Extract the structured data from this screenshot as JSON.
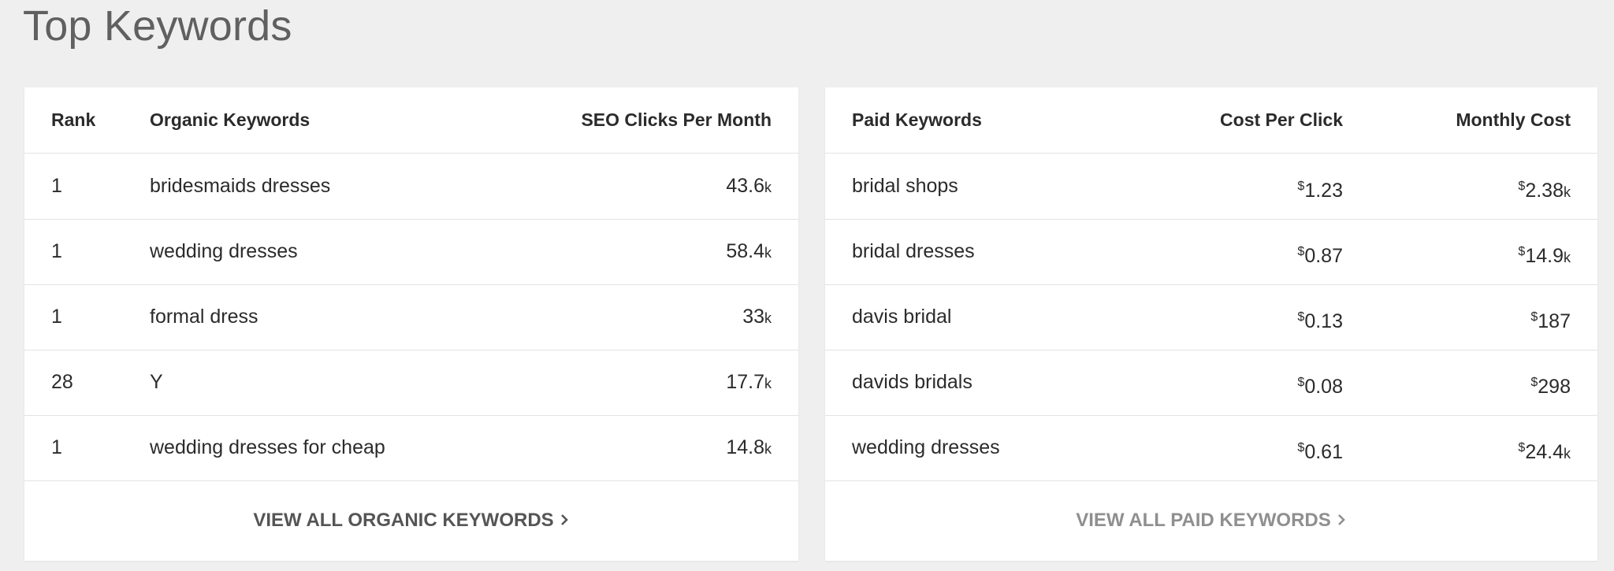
{
  "page": {
    "title": "Top Keywords"
  },
  "organic": {
    "headers": {
      "rank": "Rank",
      "keyword": "Organic Keywords",
      "clicks": "SEO Clicks Per Month"
    },
    "rows": [
      {
        "rank": "1",
        "keyword": "bridesmaids dresses",
        "clicks": "43.6",
        "clicks_suffix": "k"
      },
      {
        "rank": "1",
        "keyword": "wedding dresses",
        "clicks": "58.4",
        "clicks_suffix": "k"
      },
      {
        "rank": "1",
        "keyword": "formal dress",
        "clicks": "33",
        "clicks_suffix": "k"
      },
      {
        "rank": "28",
        "keyword": "Y",
        "clicks": "17.7",
        "clicks_suffix": "k"
      },
      {
        "rank": "1",
        "keyword": "wedding dresses for cheap",
        "clicks": "14.8",
        "clicks_suffix": "k"
      }
    ],
    "footer_label": "VIEW ALL ORGANIC KEYWORDS"
  },
  "paid": {
    "headers": {
      "keyword": "Paid Keywords",
      "cpc": "Cost Per Click",
      "monthly": "Monthly Cost"
    },
    "currency_symbol": "$",
    "rows": [
      {
        "keyword": "bridal shops",
        "cpc": "1.23",
        "monthly": "2.38",
        "monthly_suffix": "k"
      },
      {
        "keyword": "bridal dresses",
        "cpc": "0.87",
        "monthly": "14.9",
        "monthly_suffix": "k"
      },
      {
        "keyword": "davis bridal",
        "cpc": "0.13",
        "monthly": "187",
        "monthly_suffix": ""
      },
      {
        "keyword": "davids bridals",
        "cpc": "0.08",
        "monthly": "298",
        "monthly_suffix": ""
      },
      {
        "keyword": "wedding dresses",
        "cpc": "0.61",
        "monthly": "24.4",
        "monthly_suffix": "k"
      }
    ],
    "footer_label": "VIEW ALL PAID KEYWORDS"
  },
  "icons": {
    "footer_chevron": "chevron-right-icon"
  },
  "colors": {
    "link": "#2b6cae",
    "background": "#efefef",
    "card": "#ffffff"
  }
}
